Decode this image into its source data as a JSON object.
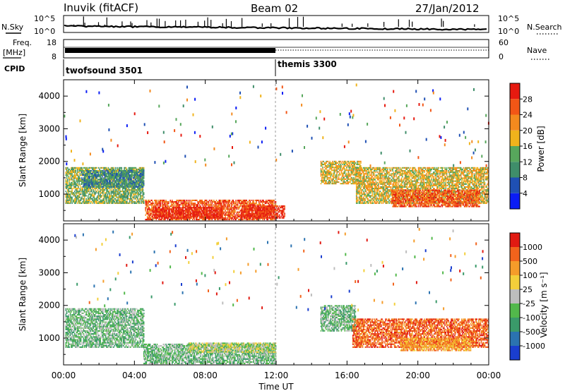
{
  "header": {
    "station": "Inuvik (fitACF)",
    "beam": "Beam 02",
    "date": "27/Jan/2012"
  },
  "top_panels": {
    "nsky_label": "N.Sky",
    "nsearch_label": "N.Search",
    "nsky_ticks": [
      "10^5",
      "10^0"
    ],
    "nsearch_ticks": [
      "10^5",
      "10^0"
    ],
    "freq_label_1": "Freq.",
    "freq_label_2": "[MHz]",
    "freq_ticks": [
      "18",
      "8"
    ],
    "nave_label": "Nave",
    "nave_ticks": [
      "60",
      "0"
    ],
    "cpid_label": "CPID",
    "cpid_segments": [
      {
        "name": "twofsound 3501",
        "start_hour": 0
      },
      {
        "name": "themis 3300",
        "start_hour": 12
      }
    ]
  },
  "x_axis": {
    "label": "Time UT",
    "ticks": [
      "00:00",
      "04:00",
      "08:00",
      "12:00",
      "16:00",
      "20:00",
      "00:00"
    ]
  },
  "chart_data": [
    {
      "type": "heatmap",
      "title": "",
      "xlabel": "Time UT",
      "ylabel": "Slant Range [km]",
      "xlim": [
        0,
        24
      ],
      "ylim": [
        180,
        4500
      ],
      "yticks": [
        1000,
        2000,
        3000,
        4000
      ],
      "colorbar_label": "Power [dB]",
      "colorbar_ticks": [
        "4",
        "8",
        "12",
        "16",
        "20",
        "24",
        "28"
      ],
      "colorbar_colors": [
        "#0b1df5",
        "#1f50b4",
        "#3f8e6a",
        "#57a75c",
        "#f0b31c",
        "#f38a1e",
        "#f25616",
        "#e61a10"
      ],
      "echo_regions": [
        {
          "t0": 0.1,
          "t1": 4.5,
          "r0": 700,
          "r1": 1800,
          "level": 3
        },
        {
          "t0": 1.0,
          "t1": 4.5,
          "r0": 1200,
          "r1": 1700,
          "level": 2
        },
        {
          "t0": 4.6,
          "t1": 12.0,
          "r0": 200,
          "r1": 800,
          "level": 6
        },
        {
          "t0": 5.0,
          "t1": 9.0,
          "r0": 250,
          "r1": 600,
          "level": 7
        },
        {
          "t0": 10.0,
          "t1": 12.5,
          "r0": 250,
          "r1": 650,
          "level": 7
        },
        {
          "t0": 14.5,
          "t1": 16.8,
          "r0": 1300,
          "r1": 2000,
          "level": 4
        },
        {
          "t0": 16.5,
          "t1": 24.0,
          "r0": 700,
          "r1": 1800,
          "level": 4
        },
        {
          "t0": 18.5,
          "t1": 23.5,
          "r0": 600,
          "r1": 1100,
          "level": 6
        }
      ]
    },
    {
      "type": "heatmap",
      "title": "",
      "xlabel": "Time UT",
      "ylabel": "Slant Range [km]",
      "xlim": [
        0,
        24
      ],
      "ylim": [
        180,
        4500
      ],
      "yticks": [
        1000,
        2000,
        3000,
        4000
      ],
      "colorbar_label": "Velocity [m s⁻¹]",
      "colorbar_ticks": [
        "1000",
        "500",
        "100",
        "25",
        "-25",
        "-100",
        "-500",
        "-1000"
      ],
      "colorbar_colors": [
        "#1a3ecf",
        "#2b73b0",
        "#3a9a6a",
        "#52b84b",
        "#bdbdbd",
        "#f3cf3a",
        "#f59c2a",
        "#f2631c",
        "#e11a12"
      ],
      "echo_regions": [
        {
          "t0": 0.1,
          "t1": 4.5,
          "r0": 700,
          "r1": 1900,
          "level": 3
        },
        {
          "t0": 4.5,
          "t1": 12.0,
          "r0": 200,
          "r1": 800,
          "level": 3
        },
        {
          "t0": 7.0,
          "t1": 12.0,
          "r0": 550,
          "r1": 850,
          "level": 4
        },
        {
          "t0": 14.5,
          "t1": 16.5,
          "r0": 1200,
          "r1": 2000,
          "level": 3
        },
        {
          "t0": 16.3,
          "t1": 24.0,
          "r0": 700,
          "r1": 1600,
          "level": 7
        },
        {
          "t0": 19.0,
          "t1": 23.0,
          "r0": 600,
          "r1": 1000,
          "level": 6
        }
      ]
    }
  ]
}
